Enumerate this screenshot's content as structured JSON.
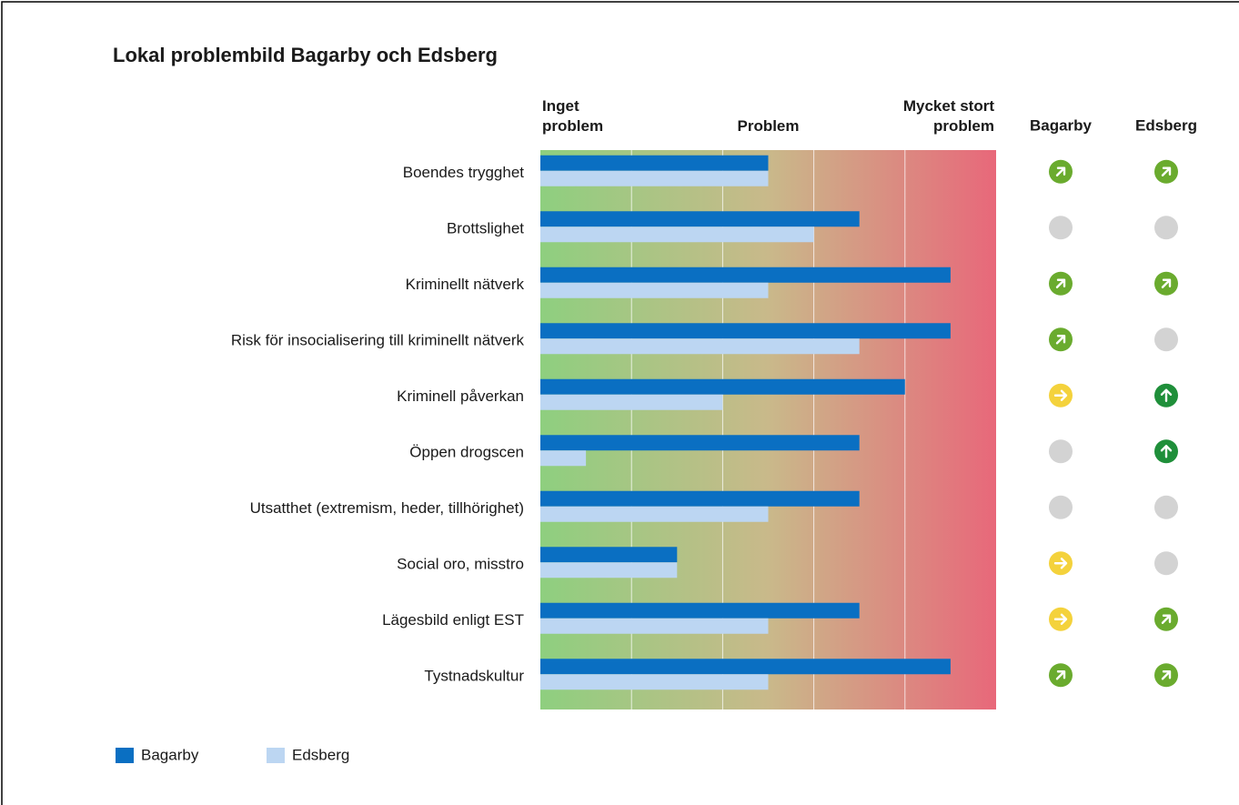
{
  "chart_data": {
    "type": "hbar",
    "title": "Lokal problembild Bagarby och Edsberg",
    "categories": [
      "Boendes trygghet",
      "Brottslighet",
      "Kriminellt nätverk",
      "Risk för insocialisering till kriminellt nätverk",
      "Kriminell påverkan",
      "Öppen drogscen",
      "Utsatthet (extremism, heder, tillhörighet)",
      "Social oro, misstro",
      "Lägesbild enligt EST",
      "Tystnadskultur"
    ],
    "series": [
      {
        "name": "Bagarby",
        "color": "#0a6fc2",
        "values": [
          2.5,
          3.5,
          4.5,
          4.5,
          4,
          3.5,
          3.5,
          1.5,
          3.5,
          4.5
        ],
        "trend": [
          "up-right",
          "none",
          "up-right",
          "up-right",
          "right",
          "none",
          "none",
          "right",
          "right",
          "up-right"
        ]
      },
      {
        "name": "Edsberg",
        "color": "#bcd6f2",
        "values": [
          2.5,
          3,
          2.5,
          3.5,
          2,
          0.5,
          2.5,
          1.5,
          2.5,
          2.5
        ],
        "trend": [
          "up-right",
          "none",
          "up-right",
          "none",
          "up",
          "up",
          "none",
          "none",
          "up-right",
          "up-right"
        ]
      }
    ],
    "xlim": [
      0,
      5
    ],
    "xticks": [
      1,
      2,
      3,
      4
    ],
    "grid": true,
    "scale_labels": [
      {
        "value": 0,
        "label": "Inget problem"
      },
      {
        "value": 2.5,
        "label": "Problem"
      },
      {
        "value": 5,
        "label": "Mycket stort problem"
      }
    ],
    "background_gradient": [
      "#8ecf7f",
      "#c9b98a",
      "#e8687a"
    ],
    "trend_colors": {
      "up-right": "#6aab2e",
      "up": "#1f8f3a",
      "right": "#f4d23c",
      "none": "#d3d3d3"
    },
    "legend": "bottom-left"
  }
}
